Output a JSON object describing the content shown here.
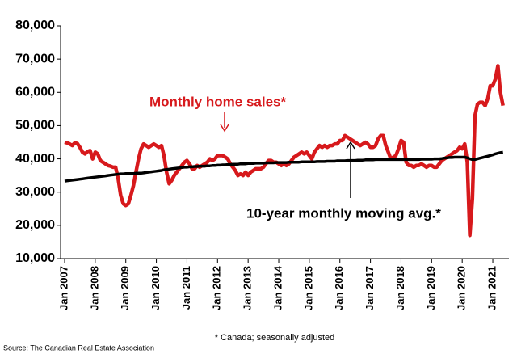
{
  "chart_data": {
    "type": "line",
    "categories": [
      "Jan 2007",
      null,
      null,
      null,
      null,
      null,
      null,
      null,
      null,
      null,
      null,
      null,
      "Jan 2008",
      null,
      null,
      null,
      null,
      null,
      null,
      null,
      null,
      null,
      null,
      null,
      "Jan 2009",
      null,
      null,
      null,
      null,
      null,
      null,
      null,
      null,
      null,
      null,
      null,
      "Jan 2010",
      null,
      null,
      null,
      null,
      null,
      null,
      null,
      null,
      null,
      null,
      null,
      "Jan 2011",
      null,
      null,
      null,
      null,
      null,
      null,
      null,
      null,
      null,
      null,
      null,
      "Jan 2012",
      null,
      null,
      null,
      null,
      null,
      null,
      null,
      null,
      null,
      null,
      null,
      "Jan 2013",
      null,
      null,
      null,
      null,
      null,
      null,
      null,
      null,
      null,
      null,
      null,
      "Jan 2014",
      null,
      null,
      null,
      null,
      null,
      null,
      null,
      null,
      null,
      null,
      null,
      "Jan 2015",
      null,
      null,
      null,
      null,
      null,
      null,
      null,
      null,
      null,
      null,
      null,
      "Jan 2016",
      null,
      null,
      null,
      null,
      null,
      null,
      null,
      null,
      null,
      null,
      null,
      "Jan 2017",
      null,
      null,
      null,
      null,
      null,
      null,
      null,
      null,
      null,
      null,
      null,
      "Jan 2018",
      null,
      null,
      null,
      null,
      null,
      null,
      null,
      null,
      null,
      null,
      null,
      "Jan 2019",
      null,
      null,
      null,
      null,
      null,
      null,
      null,
      null,
      null,
      null,
      null,
      "Jan 2020",
      null,
      null,
      null,
      null,
      null,
      null,
      null,
      null,
      null,
      null,
      null,
      "Jan 2021",
      null,
      null,
      null,
      null
    ],
    "series": [
      {
        "name": "Monthly home sales*",
        "color": "#d7191c",
        "values": [
          45000,
          44800,
          44500,
          44000,
          44800,
          44600,
          43500,
          42000,
          41500,
          42200,
          42500,
          40000,
          42000,
          41500,
          39500,
          39000,
          38500,
          38000,
          37800,
          37500,
          37500,
          34000,
          29000,
          26500,
          26000,
          26500,
          29000,
          32000,
          36000,
          40000,
          43000,
          44500,
          44000,
          43500,
          44000,
          44500,
          44000,
          43500,
          44000,
          41000,
          36000,
          32500,
          33500,
          35000,
          36000,
          37000,
          38000,
          39000,
          39500,
          38500,
          37000,
          37000,
          38000,
          37500,
          38000,
          38500,
          39000,
          40000,
          39500,
          40000,
          41000,
          41000,
          41000,
          40500,
          40000,
          38500,
          37500,
          36500,
          35000,
          35500,
          35000,
          36000,
          35000,
          36000,
          36500,
          37000,
          37000,
          37000,
          37500,
          38500,
          39500,
          39500,
          39000,
          39000,
          38500,
          38000,
          38500,
          38000,
          38500,
          39500,
          40500,
          41000,
          41500,
          42000,
          41500,
          42000,
          41000,
          40000,
          42000,
          43000,
          44000,
          43500,
          44000,
          43500,
          44000,
          44000,
          44500,
          44500,
          45500,
          45500,
          47000,
          46500,
          46000,
          45500,
          45000,
          44500,
          44000,
          44500,
          45000,
          44500,
          43500,
          43500,
          44000,
          46000,
          47000,
          47000,
          44000,
          42000,
          40000,
          40500,
          41000,
          43000,
          45500,
          45000,
          39000,
          38000,
          38000,
          37500,
          38000,
          38000,
          38500,
          38000,
          37500,
          38000,
          38000,
          37500,
          37500,
          38500,
          39500,
          40000,
          40500,
          41000,
          41500,
          42000,
          42500,
          43500,
          43000,
          44500,
          39000,
          17000,
          28000,
          53000,
          56500,
          57000,
          57000,
          56000,
          58000,
          62000,
          62000,
          64000,
          68000,
          60000,
          56000
        ]
      },
      {
        "name": "10-year monthly moving avg.*",
        "color": "#000000",
        "values": [
          33300,
          33400,
          33500,
          33600,
          33700,
          33800,
          33900,
          34000,
          34100,
          34200,
          34300,
          34400,
          34500,
          34600,
          34700,
          34800,
          34900,
          35000,
          35100,
          35200,
          35300,
          35400,
          35500,
          35500,
          35600,
          35600,
          35600,
          35600,
          35700,
          35700,
          35700,
          35800,
          35900,
          36000,
          36100,
          36200,
          36300,
          36400,
          36500,
          36700,
          36800,
          36900,
          37000,
          37100,
          37200,
          37300,
          37400,
          37500,
          37500,
          37600,
          37600,
          37700,
          37700,
          37800,
          37800,
          37800,
          37900,
          37900,
          38000,
          38000,
          38100,
          38100,
          38200,
          38200,
          38300,
          38300,
          38400,
          38400,
          38400,
          38500,
          38500,
          38500,
          38600,
          38600,
          38600,
          38700,
          38700,
          38700,
          38700,
          38800,
          38800,
          38800,
          38800,
          38900,
          38900,
          38900,
          38900,
          38900,
          39000,
          39000,
          39000,
          39000,
          39000,
          39100,
          39100,
          39100,
          39100,
          39100,
          39100,
          39200,
          39200,
          39200,
          39200,
          39300,
          39300,
          39300,
          39300,
          39400,
          39400,
          39400,
          39400,
          39500,
          39500,
          39500,
          39500,
          39600,
          39600,
          39600,
          39700,
          39700,
          39700,
          39700,
          39800,
          39800,
          39800,
          39800,
          39800,
          39800,
          39800,
          39800,
          39800,
          39800,
          39800,
          39800,
          39800,
          39800,
          39800,
          39800,
          39800,
          39800,
          39900,
          39900,
          39900,
          39900,
          39900,
          40000,
          40000,
          40000,
          40100,
          40200,
          40300,
          40400,
          40400,
          40500,
          40500,
          40500,
          40500,
          40500,
          40300,
          40000,
          39800,
          39800,
          40000,
          40200,
          40400,
          40600,
          40800,
          41000,
          41200,
          41500,
          41700,
          41900,
          42000
        ]
      }
    ],
    "ylim": [
      10000,
      80000
    ],
    "yticks": [
      {
        "value": 10000,
        "label": "10,000"
      },
      {
        "value": 20000,
        "label": "20,000"
      },
      {
        "value": 30000,
        "label": "30,000"
      },
      {
        "value": 40000,
        "label": "40,000"
      },
      {
        "value": 50000,
        "label": "50,000"
      },
      {
        "value": 60000,
        "label": "60,000"
      },
      {
        "value": 70000,
        "label": "70,000"
      },
      {
        "value": 80000,
        "label": "80,000"
      }
    ],
    "grid": false,
    "footnote": "* Canada; seasonally adjusted",
    "source": "Source: The Canadian Real Estate Association"
  }
}
